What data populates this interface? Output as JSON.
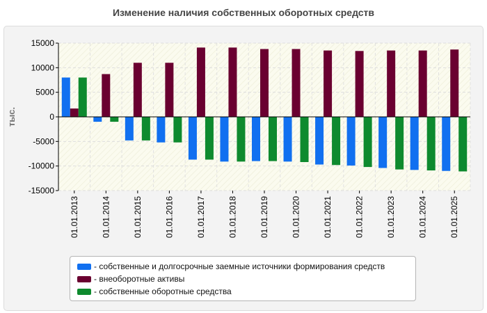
{
  "chart_data": {
    "type": "bar",
    "title": "Изменение наличия собственных оборотных средств",
    "ylabel": "тыс.",
    "xlabel": "",
    "ylim": [
      -15000,
      15000
    ],
    "yticks": [
      15000,
      10000,
      5000,
      0,
      -5000,
      -10000,
      -15000
    ],
    "categories": [
      "01.01.2013",
      "01.01.2014",
      "01.01.2015",
      "01.01.2016",
      "01.01.2017",
      "01.01.2018",
      "01.01.2019",
      "01.01.2020",
      "01.01.2021",
      "01.01.2022",
      "01.01.2023",
      "01.01.2024",
      "01.01.2025"
    ],
    "series": [
      {
        "name": "собственные и долгосрочные заемные источники формирования средств",
        "color": "#1170f0",
        "values": [
          8000,
          -1000,
          -4800,
          -5200,
          -8700,
          -9100,
          -9000,
          -9100,
          -9700,
          -9900,
          -10400,
          -10800,
          -11000
        ]
      },
      {
        "name": "внеоборотные активы",
        "color": "#6a0030",
        "values": [
          1700,
          8700,
          11000,
          11000,
          14100,
          14100,
          13800,
          13800,
          13500,
          13400,
          13500,
          13500,
          13700
        ]
      },
      {
        "name": "собственные оборотные средства",
        "color": "#0e8a2e",
        "values": [
          8000,
          -1000,
          -4800,
          -5200,
          -8700,
          -9100,
          -9000,
          -9200,
          -9800,
          -10200,
          -10700,
          -10900,
          -11100
        ]
      }
    ],
    "legend_position": "bottom",
    "grid": true
  }
}
